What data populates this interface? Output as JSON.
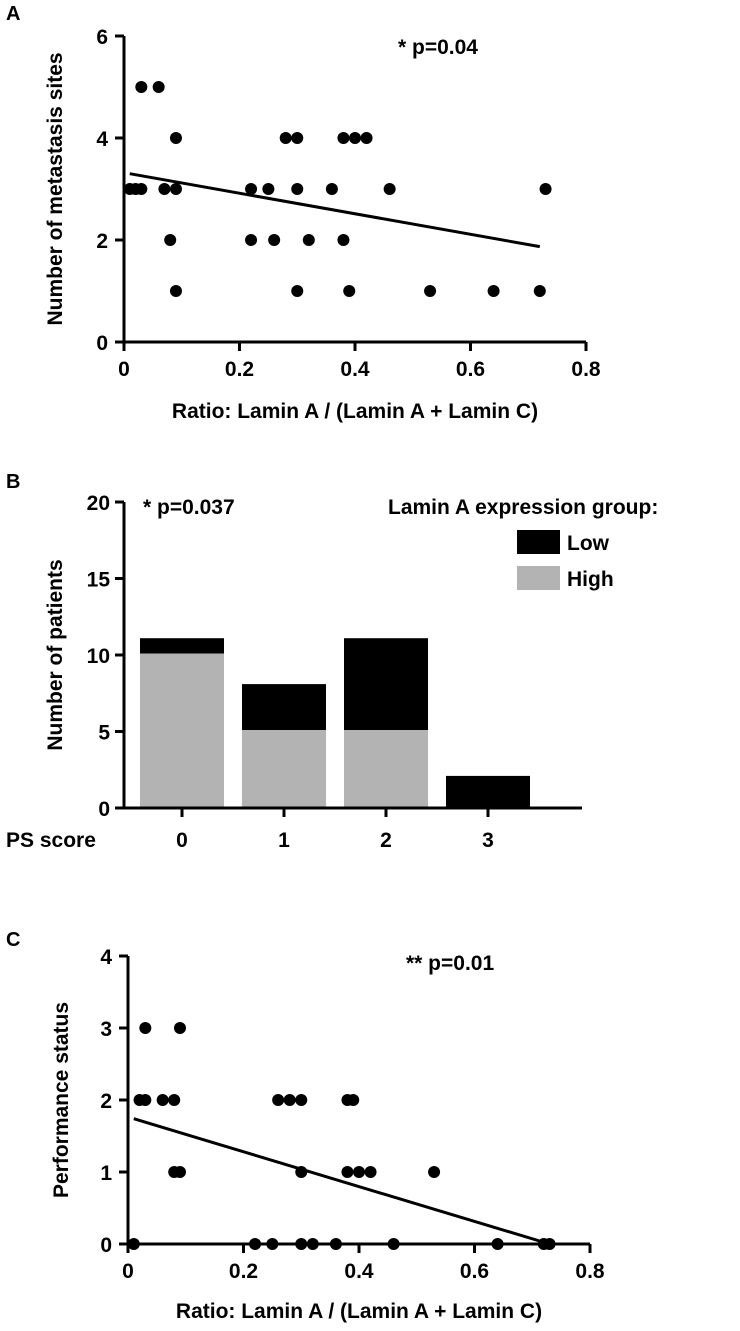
{
  "chart_data": [
    {
      "panel": "A",
      "type": "scatter",
      "annotation": "* p=0.04",
      "xlabel": "Ratio: Lamin A / (Lamin A + Lamin C)",
      "ylabel": "Number of metastasis sites",
      "xlim": [
        0,
        0.8
      ],
      "ylim": [
        0,
        6
      ],
      "xticks": [
        "0",
        "0.2",
        "0.4",
        "0.6",
        "0.8"
      ],
      "yticks": [
        "0",
        "2",
        "4",
        "6"
      ],
      "xtick_values": [
        0,
        0.2,
        0.4,
        0.6,
        0.8
      ],
      "ytick_values": [
        0,
        2,
        4,
        6
      ],
      "points": [
        [
          0.01,
          3
        ],
        [
          0.02,
          3
        ],
        [
          0.03,
          3
        ],
        [
          0.03,
          5
        ],
        [
          0.06,
          5
        ],
        [
          0.07,
          3
        ],
        [
          0.08,
          2
        ],
        [
          0.09,
          4
        ],
        [
          0.09,
          3
        ],
        [
          0.09,
          1
        ],
        [
          0.22,
          3
        ],
        [
          0.22,
          2
        ],
        [
          0.25,
          3
        ],
        [
          0.26,
          2
        ],
        [
          0.28,
          4
        ],
        [
          0.3,
          4
        ],
        [
          0.3,
          3
        ],
        [
          0.3,
          1
        ],
        [
          0.32,
          2
        ],
        [
          0.36,
          3
        ],
        [
          0.38,
          4
        ],
        [
          0.38,
          2
        ],
        [
          0.39,
          1
        ],
        [
          0.4,
          4
        ],
        [
          0.42,
          4
        ],
        [
          0.46,
          3
        ],
        [
          0.53,
          1
        ],
        [
          0.64,
          1
        ],
        [
          0.72,
          1
        ],
        [
          0.73,
          3
        ]
      ],
      "fit": [
        [
          0.01,
          3.3
        ],
        [
          0.72,
          1.87
        ]
      ]
    },
    {
      "panel": "B",
      "type": "bar",
      "stacked": true,
      "annotation": "* p=0.037",
      "xlabel": "PS score",
      "ylabel": "Number of patients",
      "categories": [
        "0",
        "1",
        "2",
        "3"
      ],
      "ylim": [
        0,
        20
      ],
      "yticks": [
        "0",
        "5",
        "10",
        "15",
        "20"
      ],
      "ytick_values": [
        0,
        5,
        10,
        15,
        20
      ],
      "legend_title": "Lamin A expression group:",
      "legend_position": "top-right",
      "series": [
        {
          "name": "High",
          "values": [
            10,
            5,
            5,
            0
          ],
          "color": "#b3b3b3"
        },
        {
          "name": "Low",
          "values": [
            1,
            3,
            6,
            2
          ],
          "color": "#000000"
        }
      ]
    },
    {
      "panel": "C",
      "type": "scatter",
      "annotation": "** p=0.01",
      "xlabel": "Ratio: Lamin A / (Lamin A + Lamin C)",
      "ylabel": "Performance status",
      "xlim": [
        0,
        0.8
      ],
      "ylim": [
        0,
        4
      ],
      "xticks": [
        "0",
        "0.2",
        "0.4",
        "0.6",
        "0.8"
      ],
      "yticks": [
        "0",
        "1",
        "2",
        "3",
        "4"
      ],
      "xtick_values": [
        0,
        0.2,
        0.4,
        0.6,
        0.8
      ],
      "ytick_values": [
        0,
        1,
        2,
        3,
        4
      ],
      "points": [
        [
          0.01,
          0
        ],
        [
          0.02,
          2
        ],
        [
          0.03,
          2
        ],
        [
          0.03,
          3
        ],
        [
          0.06,
          2
        ],
        [
          0.08,
          2
        ],
        [
          0.08,
          1
        ],
        [
          0.09,
          3
        ],
        [
          0.09,
          1
        ],
        [
          0.22,
          0
        ],
        [
          0.25,
          0
        ],
        [
          0.26,
          2
        ],
        [
          0.28,
          2
        ],
        [
          0.3,
          2
        ],
        [
          0.3,
          1
        ],
        [
          0.3,
          0
        ],
        [
          0.32,
          0
        ],
        [
          0.36,
          0
        ],
        [
          0.38,
          2
        ],
        [
          0.38,
          1
        ],
        [
          0.39,
          2
        ],
        [
          0.4,
          1
        ],
        [
          0.42,
          1
        ],
        [
          0.46,
          0
        ],
        [
          0.53,
          1
        ],
        [
          0.64,
          0
        ],
        [
          0.72,
          0
        ],
        [
          0.73,
          0
        ]
      ],
      "fit": [
        [
          0.01,
          1.74
        ],
        [
          0.73,
          0
        ]
      ]
    }
  ]
}
